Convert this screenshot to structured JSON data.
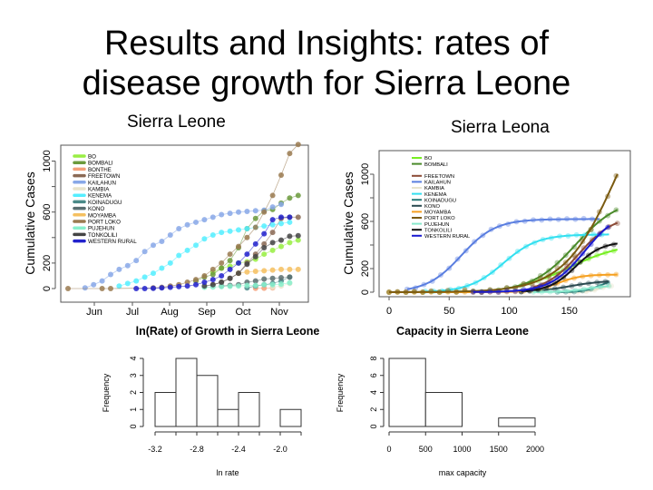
{
  "slide": {
    "title_line1": "Results and Insights: rates of",
    "title_line2": "disease growth for Sierra Leone"
  },
  "chart_data": [
    {
      "id": "cumulative-by-date",
      "type": "scatter",
      "caption": "Sierra Leone",
      "title": "",
      "xlabel": "",
      "ylabel": "Cumulative Cases",
      "x_ticks": [
        "Jun",
        "Jul",
        "Aug",
        "Sep",
        "Oct",
        "Nov"
      ],
      "y_ticks": [
        0,
        200,
        600,
        1000
      ],
      "ylim": [
        0,
        1130
      ],
      "x_unit": "weeks since mid-May 2014",
      "legend": "top-left",
      "series": [
        {
          "name": "BO",
          "color": "#99ee44",
          "x": [
            17,
            18,
            19,
            20,
            21,
            22,
            23,
            24,
            25,
            26,
            27
          ],
          "y": [
            130,
            160,
            175,
            200,
            210,
            230,
            270,
            300,
            330,
            360,
            380
          ]
        },
        {
          "name": "BOMBALI",
          "color": "#6b9a3c",
          "x": [
            15,
            16,
            17,
            18,
            19,
            20,
            21,
            22,
            23,
            24,
            25,
            26,
            27
          ],
          "y": [
            60,
            90,
            110,
            160,
            220,
            320,
            470,
            550,
            610,
            620,
            670,
            710,
            730
          ]
        },
        {
          "name": "BONTHE",
          "color": "#f4a07a",
          "x": [
            22,
            23,
            24
          ],
          "y": [
            2,
            3,
            5
          ]
        },
        {
          "name": "FREETOWN",
          "color": "#8b6a55",
          "x": [
            17,
            18,
            19,
            20,
            21,
            22,
            23,
            24,
            25,
            26,
            27
          ],
          "y": [
            30,
            50,
            80,
            120,
            200,
            270,
            350,
            440,
            550,
            560,
            560
          ]
        },
        {
          "name": "KAILAHUN",
          "color": "#88a8e8",
          "x": [
            2,
            3,
            4,
            5,
            6,
            7,
            8,
            9,
            10,
            11,
            12,
            13,
            14,
            15,
            16,
            17,
            18,
            19,
            20,
            21,
            22,
            23,
            24,
            25
          ],
          "y": [
            5,
            30,
            60,
            110,
            150,
            180,
            220,
            290,
            340,
            370,
            420,
            470,
            500,
            520,
            540,
            560,
            580,
            590,
            600,
            605,
            610,
            615,
            640,
            660
          ]
        },
        {
          "name": "KAMBIA",
          "color": "#e8e4cc",
          "x": [
            24,
            25,
            26
          ],
          "y": [
            10,
            20,
            40
          ]
        },
        {
          "name": "KENEMA",
          "color": "#55eeff",
          "x": [
            6,
            7,
            8,
            9,
            10,
            11,
            12,
            13,
            14,
            15,
            16,
            17,
            18,
            19,
            20,
            21,
            22,
            23,
            24,
            25,
            26
          ],
          "y": [
            20,
            40,
            60,
            90,
            120,
            160,
            200,
            260,
            300,
            340,
            390,
            420,
            440,
            450,
            460,
            470,
            480,
            490,
            500,
            510,
            520
          ]
        },
        {
          "name": "KOINADUGU",
          "color": "#4a8a88",
          "x": [
            21,
            22,
            23,
            24,
            25,
            26
          ],
          "y": [
            5,
            20,
            30,
            40,
            60,
            90
          ]
        },
        {
          "name": "KONO",
          "color": "#5a6e70",
          "x": [
            18,
            19,
            20,
            21,
            22,
            23,
            24,
            25,
            26
          ],
          "y": [
            20,
            25,
            30,
            50,
            60,
            75,
            80,
            85,
            90
          ]
        },
        {
          "name": "MOYAMBA",
          "color": "#f5c060",
          "x": [
            20,
            21,
            22,
            23,
            24,
            25,
            26,
            27
          ],
          "y": [
            120,
            130,
            135,
            140,
            145,
            150,
            150,
            150
          ]
        },
        {
          "name": "PORT LOKO",
          "color": "#9a7a50",
          "x": [
            0,
            4,
            5,
            10,
            11,
            12,
            13,
            14,
            15,
            16,
            17,
            18,
            19,
            20,
            21,
            22,
            23,
            24,
            25,
            26,
            27
          ],
          "y": [
            0,
            0,
            0,
            5,
            10,
            20,
            30,
            50,
            70,
            100,
            150,
            200,
            270,
            330,
            400,
            480,
            600,
            730,
            890,
            1060,
            1130
          ]
        },
        {
          "name": "PUJEHUN",
          "color": "#88f0cc",
          "x": [
            16,
            17,
            18,
            19,
            20,
            21,
            22,
            23,
            24,
            25,
            26
          ],
          "y": [
            10,
            12,
            15,
            18,
            20,
            25,
            25,
            30,
            30,
            35,
            45
          ]
        },
        {
          "name": "TONKOLILI",
          "color": "#444444",
          "x": [
            16,
            17,
            18,
            19,
            20,
            21,
            22,
            23,
            24,
            25,
            26,
            27
          ],
          "y": [
            20,
            30,
            50,
            80,
            120,
            190,
            250,
            320,
            360,
            380,
            410,
            415
          ]
        },
        {
          "name": "WESTERN RURAL",
          "color": "#2222cc",
          "x": [
            8,
            9,
            10,
            11,
            12,
            13,
            14,
            15,
            16,
            17,
            18,
            19,
            20,
            21,
            22,
            23,
            24,
            25,
            26
          ],
          "y": [
            0,
            0,
            2,
            5,
            10,
            15,
            20,
            30,
            50,
            70,
            100,
            150,
            200,
            270,
            350,
            430,
            540,
            560,
            560
          ]
        }
      ]
    },
    {
      "id": "cumulative-by-capacity",
      "type": "line",
      "caption": "Sierra Leona",
      "title": "",
      "xlabel": "",
      "ylabel": "Cumulative Cases",
      "x_ticks": [
        0,
        50,
        100,
        150
      ],
      "y_ticks": [
        0,
        200,
        600,
        1000
      ],
      "xlim": [
        -5,
        192
      ],
      "ylim": [
        0,
        1130
      ],
      "legend": "top-left",
      "legend_entries": [
        "BO",
        "BOMBALI",
        "",
        "FREETOWN",
        "KAILAHUN",
        "KAMBIA",
        "KENEMA",
        "KOINADUGU",
        "KONO",
        "MOYAMBA",
        "PORT LOKO",
        "PUJEHUN",
        "TONKOLILI",
        "WESTERN RURAL"
      ],
      "series": [
        {
          "name": "BO",
          "color": "#77ee22",
          "K": 420,
          "r": 0.045,
          "t0": 150,
          "xstart": 110,
          "xend": 190
        },
        {
          "name": "BOMBALI",
          "color": "#4a8a2a",
          "K": 800,
          "r": 0.055,
          "t0": 155,
          "xstart": 0,
          "xend": 190
        },
        {
          "name": "FREETOWN",
          "color": "#8b4a35",
          "K": 650,
          "r": 0.07,
          "t0": 158,
          "xstart": 120,
          "xend": 190
        },
        {
          "name": "KAILAHUN",
          "color": "#5a7ee0",
          "K": 620,
          "r": 0.07,
          "t0": 60,
          "xstart": 15,
          "xend": 175
        },
        {
          "name": "KAMBIA",
          "color": "#e8e4cc",
          "K": 60,
          "r": 0.2,
          "t0": 175,
          "xstart": 150,
          "xend": 185
        },
        {
          "name": "KENEMA",
          "color": "#33e0f0",
          "K": 490,
          "r": 0.07,
          "t0": 95,
          "xstart": 30,
          "xend": 183
        },
        {
          "name": "KOINADUGU",
          "color": "#2a7a78",
          "K": 110,
          "r": 0.15,
          "t0": 175,
          "xstart": 140,
          "xend": 183
        },
        {
          "name": "KONO",
          "color": "#2a4a50",
          "K": 100,
          "r": 0.07,
          "t0": 150,
          "xstart": 110,
          "xend": 183
        },
        {
          "name": "MOYAMBA",
          "color": "#f5a020",
          "K": 150,
          "r": 0.1,
          "t0": 140,
          "xstart": 0,
          "xend": 190
        },
        {
          "name": "PORT LOKO",
          "color": "#7a5a10",
          "K": 2000,
          "r": 0.045,
          "t0": 190,
          "xstart": 0,
          "xend": 190
        },
        {
          "name": "PUJEHUN",
          "color": "#88e8cc",
          "K": 60,
          "r": 0.1,
          "t0": 165,
          "xstart": 120,
          "xend": 183
        },
        {
          "name": "TONKOLILI",
          "color": "#111111",
          "K": 430,
          "r": 0.09,
          "t0": 155,
          "xstart": 110,
          "xend": 190
        },
        {
          "name": "WESTERN RURAL",
          "color": "#1a1ad0",
          "K": 700,
          "r": 0.07,
          "t0": 163,
          "xstart": 70,
          "xend": 183
        }
      ]
    },
    {
      "id": "ln-rate-histogram",
      "type": "bar",
      "title": "ln(Rate) of Growth in Sierra Leone",
      "xlabel": "ln rate",
      "ylabel": "Frequency",
      "bin_edges": [
        -3.2,
        -3.0,
        -2.8,
        -2.6,
        -2.4,
        -2.2,
        -2.0,
        -1.8
      ],
      "values": [
        2,
        4,
        3,
        1,
        2,
        0,
        1
      ],
      "x_ticks": [
        "-3.2",
        "-2.8",
        "-2.4",
        "-2.0"
      ],
      "y_ticks": [
        "0",
        "1",
        "2",
        "3",
        "4"
      ],
      "ylim": [
        0,
        4
      ]
    },
    {
      "id": "capacity-histogram",
      "type": "bar",
      "title": "Capacity in Sierra Leone",
      "xlabel": "max capacity",
      "ylabel": "Frequency",
      "bin_edges": [
        0,
        500,
        1000,
        1500,
        2000
      ],
      "values": [
        8,
        4,
        0,
        1
      ],
      "x_ticks": [
        "0",
        "500",
        "1000",
        "1500",
        "2000"
      ],
      "y_ticks": [
        "0",
        "2",
        "4",
        "6",
        "8"
      ],
      "ylim": [
        0,
        8
      ]
    }
  ]
}
